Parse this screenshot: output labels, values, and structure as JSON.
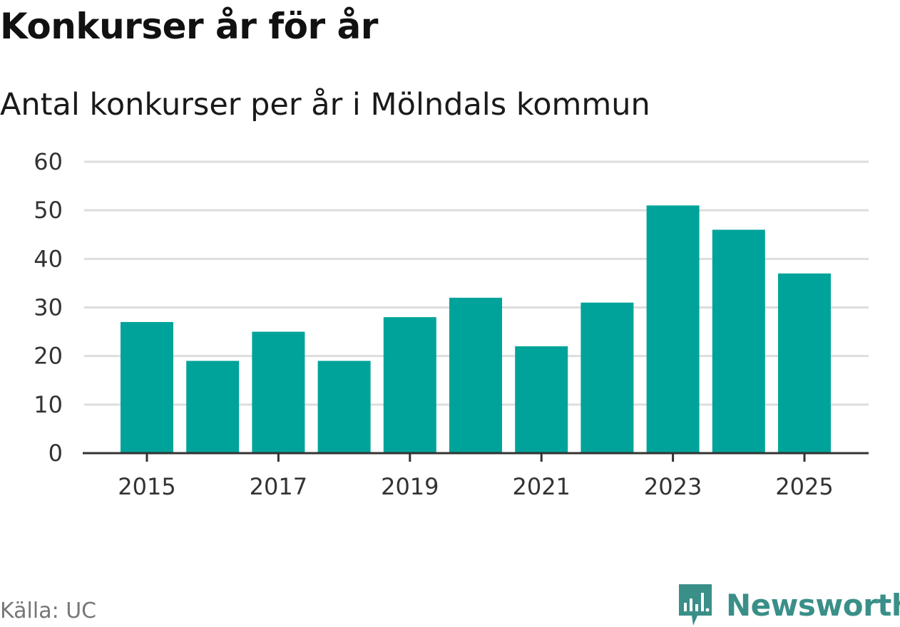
{
  "chart_data": {
    "type": "bar",
    "title": "Konkurser år för år",
    "subtitle": "Antal konkurser per år i Mölndals kommun",
    "categories": [
      "2015",
      "2016",
      "2017",
      "2018",
      "2019",
      "2020",
      "2021",
      "2022",
      "2023",
      "2024",
      "2025"
    ],
    "values": [
      27,
      19,
      25,
      19,
      28,
      32,
      22,
      31,
      51,
      46,
      37
    ],
    "x_tick_labels": [
      "2015",
      "2017",
      "2019",
      "2021",
      "2023",
      "2025"
    ],
    "y_ticks": [
      0,
      10,
      20,
      30,
      40,
      50,
      60
    ],
    "ylim": [
      0,
      60
    ],
    "xlabel": "",
    "ylabel": "",
    "grid": true,
    "bar_color": "#00a39a",
    "grid_color": "#dddddd",
    "axis_color": "#333333"
  },
  "source": "Källa: UC",
  "brand": {
    "name": "Newsworthy",
    "icon": "newsworthy-logo-icon",
    "color": "#3a8f88"
  }
}
